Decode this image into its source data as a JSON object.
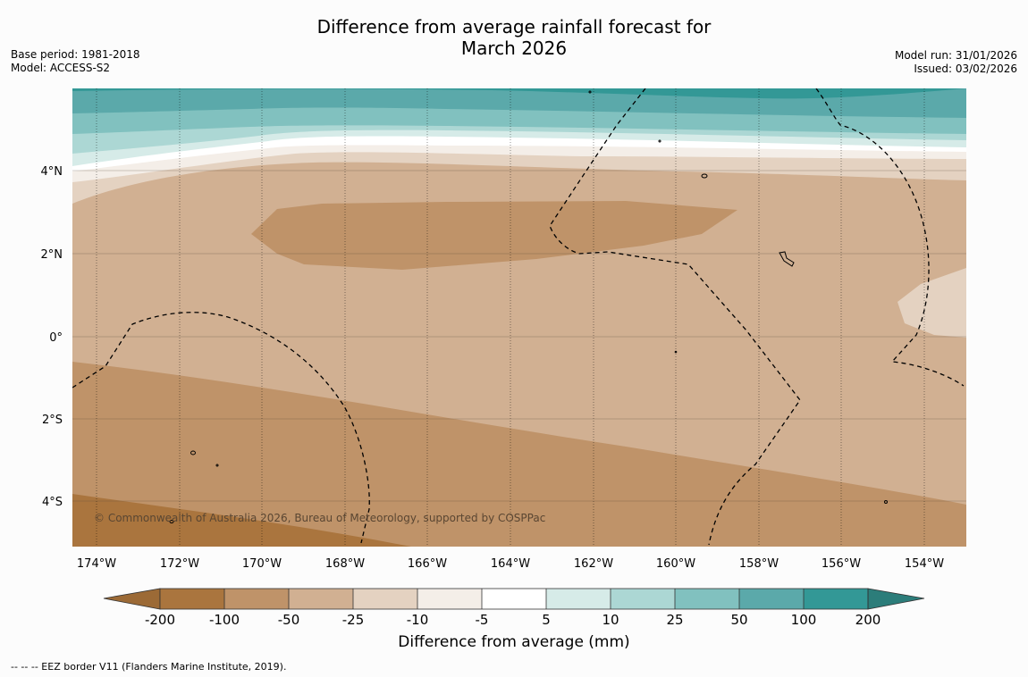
{
  "title": {
    "line1": "Difference from average rainfall forecast for",
    "line2": "March 2026"
  },
  "meta_left": {
    "base_period": "Base period: 1981-2018",
    "model": "Model: ACCESS-S2"
  },
  "meta_right": {
    "model_run": "Model run: 31/01/2026",
    "issued": "Issued: 03/02/2026"
  },
  "map": {
    "lon_labels": [
      "174°W",
      "172°W",
      "170°W",
      "168°W",
      "166°W",
      "164°W",
      "162°W",
      "160°W",
      "158°W",
      "156°W",
      "154°W"
    ],
    "lat_labels": [
      "4°N",
      "2°N",
      "0°",
      "2°S",
      "4°S"
    ],
    "copyright": "© Commonwealth of Australia 2026, Bureau of Meteorology, supported by COSPPac"
  },
  "legend": {
    "title": "Difference from average (mm)",
    "tick_labels": [
      "-200",
      "-100",
      "-50",
      "-25",
      "-10",
      "-5",
      "5",
      "10",
      "25",
      "50",
      "100",
      "200"
    ],
    "colors": {
      "below_min": "#9c6a36",
      "bins": [
        "#aa753e",
        "#bf9369",
        "#d1b092",
        "#e4d2c1",
        "#f4eee8",
        "#ffffff",
        "#d6ebe8",
        "#acd7d4",
        "#81c1bf",
        "#5ba9aa",
        "#339896"
      ],
      "above_max": "#2c7d7a"
    }
  },
  "eez_note": "--  --  -- EEZ border V11 (Flanders Marine Institute, 2019)."
}
